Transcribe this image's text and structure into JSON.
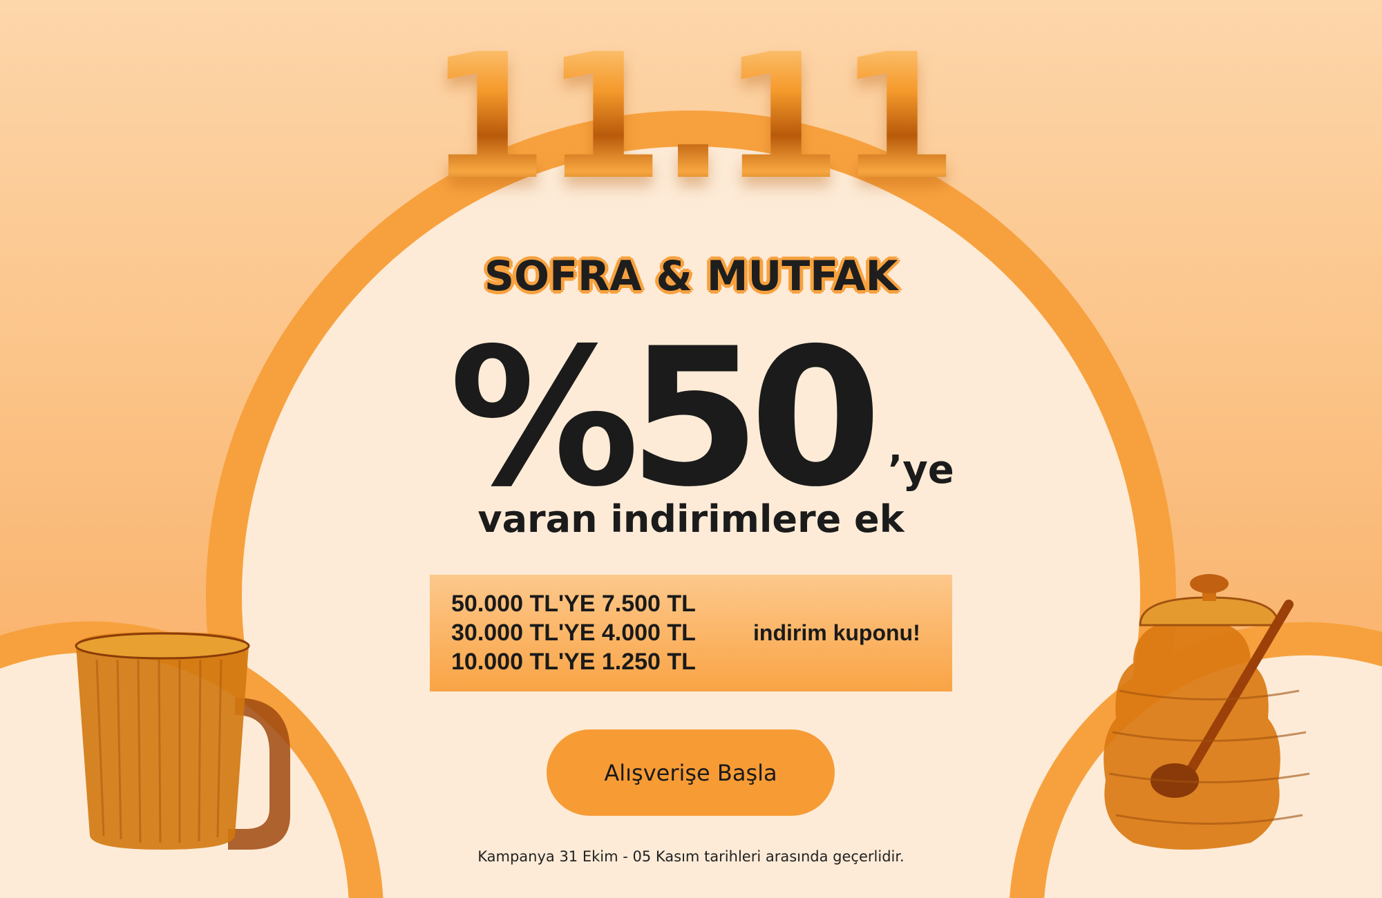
{
  "banner": {
    "title": "11.11",
    "subtitle": "SOFRA & MUTFAK",
    "discount": "%50",
    "discount_suffix": "’ye",
    "discount_caption": "varan indirimlere ek",
    "coupons": [
      "50.000 TL'YE 7.500 TL",
      "30.000 TL'YE 4.000 TL",
      "10.000 TL'YE 1.250 TL"
    ],
    "coupon_label": "indirim kuponu!",
    "cta_label": "Alışverişe Başla",
    "footnote": "Kampanya 31 Ekim - 05 Kasım tarihleri arasında geçerlidir."
  },
  "images": {
    "left": "amber-glass-mug",
    "right": "amber-glass-honey-jar"
  },
  "colors": {
    "accent": "#f79b35",
    "cream": "#fdebd7",
    "text": "#1b1b1b"
  }
}
